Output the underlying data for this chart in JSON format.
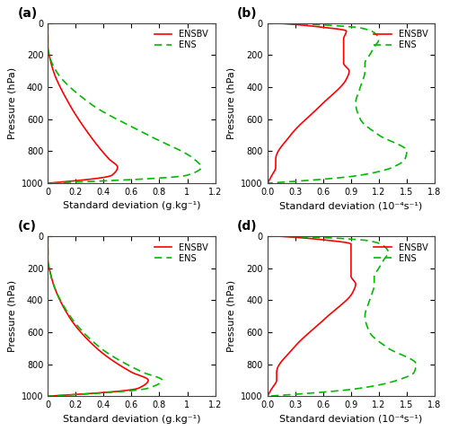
{
  "fig_size": [
    5.0,
    4.8
  ],
  "dpi": 100,
  "background_color": "#ffffff",
  "panel_labels": [
    "(a)",
    "(b)",
    "(c)",
    "(d)"
  ],
  "ensbv_color": "#ff0000",
  "ens_color": "#00bb00",
  "ensbv_linestyle": "-",
  "ens_linestyle": "--",
  "linewidth": 1.2,
  "ylabel": "Pressure (hPa)",
  "xlabel_a": "Standard deviation (g.kg⁻¹)",
  "xlabel_b": "Standard deviation (10⁻⁴s⁻¹)",
  "xlabel_c": "Standard deviation (g.kg⁻¹)",
  "xlabel_d": "Standard deviation (10⁻⁴s⁻¹)",
  "xlim_a": [
    0,
    1.2
  ],
  "xlim_b": [
    0,
    1.8
  ],
  "xlim_c": [
    0,
    1.2
  ],
  "xlim_d": [
    0,
    1.8
  ],
  "xticks_a": [
    0,
    0.2,
    0.4,
    0.6,
    0.8,
    1.0,
    1.2
  ],
  "xticks_b": [
    0.0,
    0.3,
    0.6,
    0.9,
    1.2,
    1.5,
    1.8
  ],
  "xticks_c": [
    0,
    0.2,
    0.4,
    0.6,
    0.8,
    1.0,
    1.2
  ],
  "xticks_d": [
    0.0,
    0.3,
    0.6,
    0.9,
    1.2,
    1.5,
    1.8
  ],
  "xticklabels_a": [
    "0",
    "0.2",
    "0.4",
    "0.6",
    "0.8",
    "1",
    "1.2"
  ],
  "xticklabels_b": [
    "0.0",
    "0.3",
    "0.6",
    "0.9",
    "1.2",
    "1.5",
    "1.8"
  ],
  "xticklabels_c": [
    "0",
    "0.2",
    "0.4",
    "0.6",
    "0.8",
    "1",
    "1.2"
  ],
  "xticklabels_d": [
    "0.0",
    "0.3",
    "0.6",
    "0.9",
    "1.2",
    "1.5",
    "1.8"
  ],
  "ylim": [
    1000,
    0
  ],
  "yticks": [
    0,
    200,
    400,
    600,
    800,
    1000
  ],
  "legend_labels": [
    "ENSBV",
    "ENS"
  ],
  "font_size": 8,
  "label_fontsize": 8,
  "tick_fontsize": 7
}
